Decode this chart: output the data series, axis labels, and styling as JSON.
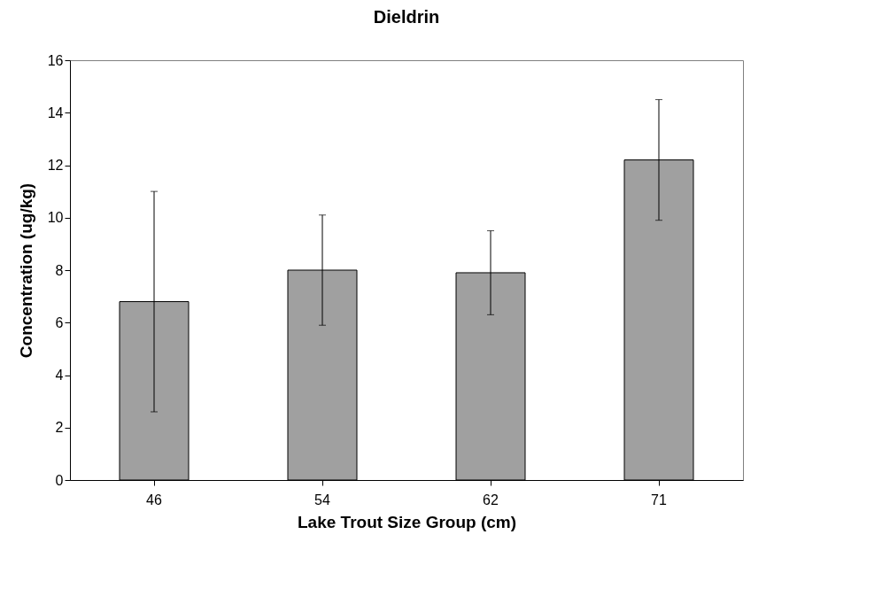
{
  "chart_data": {
    "type": "bar",
    "title": "Dieldrin",
    "xlabel": "Lake Trout Size Group (cm)",
    "ylabel": "Concentration (ug/kg)",
    "categories": [
      "46",
      "54",
      "62",
      "71"
    ],
    "values": [
      6.8,
      8.0,
      7.9,
      12.2
    ],
    "errors": [
      4.2,
      2.1,
      1.6,
      2.3
    ],
    "color": "#a0a0a0",
    "ylim": [
      0,
      16
    ],
    "yticks": [
      0,
      2,
      4,
      6,
      8,
      10,
      12,
      14,
      16
    ],
    "grid": false
  }
}
